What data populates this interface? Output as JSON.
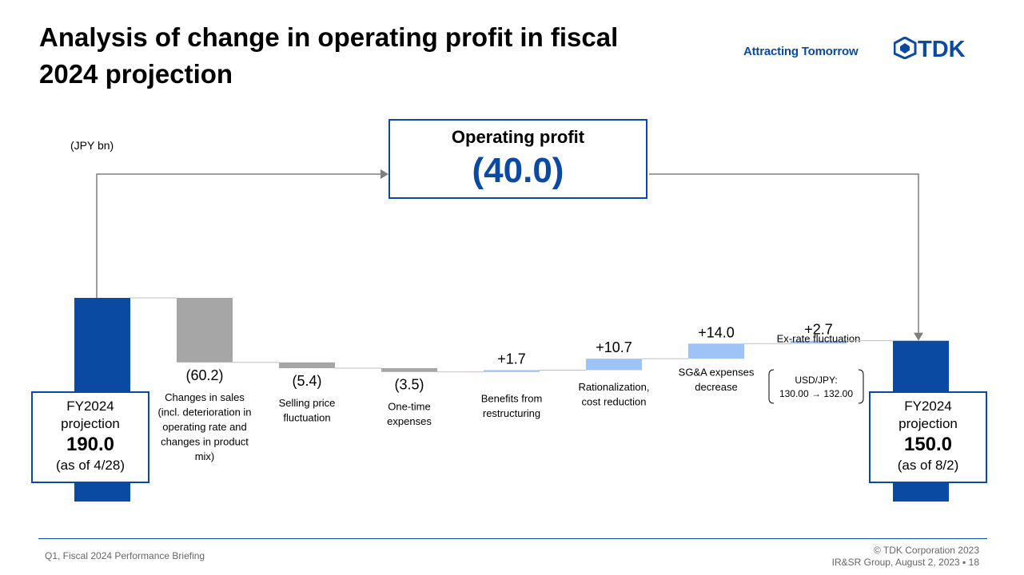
{
  "title": "Analysis of change in operating profit in fiscal 2024 projection",
  "tagline": "Attracting Tomorrow",
  "logo_text": "TDK",
  "unit_label": "(JPY bn)",
  "operating_profit": {
    "label": "Operating profit",
    "value": "(40.0)"
  },
  "start_box": {
    "line1": "FY2024",
    "line2": "projection",
    "value": "190.0",
    "asof": "(as of 4/28)"
  },
  "end_box": {
    "line1": "FY2024",
    "line2": "projection",
    "value": "150.0",
    "asof": "(as of 8/2)"
  },
  "fx_note": {
    "line1": "USD/JPY:",
    "line2": "130.00 → 132.00"
  },
  "footer": {
    "left": "Q1, Fiscal 2024 Performance  Briefing",
    "right1": "© TDK Corporation 2023",
    "right2": "IR&SR Group, August 2, 2023 ▪ 18"
  },
  "colors": {
    "brand": "#0b4aa2",
    "decrease": "#a6a6a6",
    "increase": "#9ec3f7"
  },
  "chart_data": {
    "type": "bar",
    "subtype": "waterfall",
    "start": 190.0,
    "end": 150.0,
    "total_change": -40.0,
    "steps": [
      {
        "label_lines": [
          "Changes in sales",
          "(incl. deterioration in",
          "operating rate and",
          "changes in product",
          "mix)"
        ],
        "value": -60.2,
        "display": "(60.2)"
      },
      {
        "label_lines": [
          "Selling price",
          "fluctuation"
        ],
        "value": -5.4,
        "display": "(5.4)"
      },
      {
        "label_lines": [
          "One-time",
          "expenses"
        ],
        "value": -3.5,
        "display": "(3.5)"
      },
      {
        "label_lines": [
          "Benefits from",
          "restructuring"
        ],
        "value": 1.7,
        "display": "+1.7"
      },
      {
        "label_lines": [
          "Rationalization,",
          "cost reduction"
        ],
        "value": 10.7,
        "display": "+10.7"
      },
      {
        "label_lines": [
          "SG&A expenses",
          "decrease"
        ],
        "value": 14.0,
        "display": "+14.0"
      },
      {
        "label_lines": [
          "Ex-rate fluctuation"
        ],
        "value": 2.7,
        "display": "+2.7"
      }
    ]
  }
}
